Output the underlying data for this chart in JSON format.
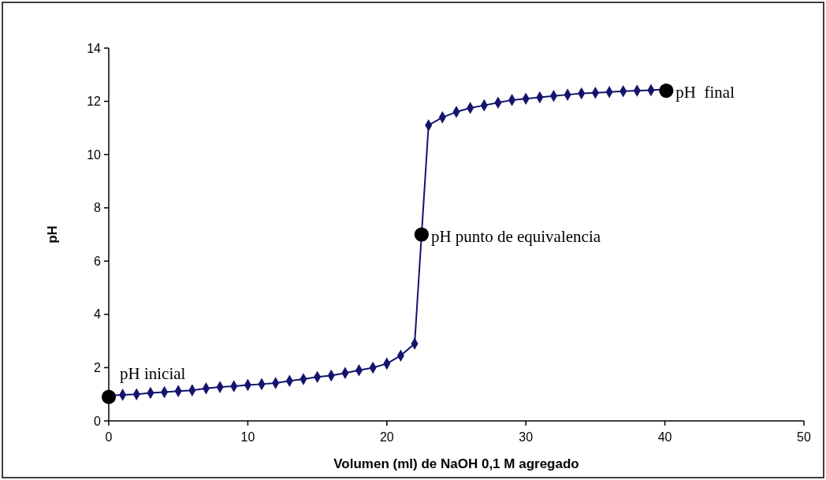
{
  "chart_data": {
    "type": "line",
    "xlabel": "Volumen (ml) de NaOH 0,1 M agregado",
    "ylabel": "pH",
    "xlim": [
      0,
      50
    ],
    "xticks": [
      0,
      10,
      20,
      30,
      40,
      50
    ],
    "ylim": [
      0,
      14
    ],
    "yticks": [
      0,
      2,
      4,
      6,
      8,
      10,
      12,
      14
    ],
    "marker": "diamond",
    "line_style": "solid",
    "series": [
      {
        "color": "#14146e",
        "x": [
          0,
          1,
          2,
          3,
          4,
          5,
          6,
          7,
          8,
          9,
          10,
          11,
          12,
          13,
          14,
          15,
          16,
          17,
          18,
          19,
          20,
          21,
          22,
          23,
          24,
          25,
          26,
          27,
          28,
          29,
          30,
          31,
          32,
          33,
          34,
          35,
          36,
          37,
          38,
          39,
          40
        ],
        "values": [
          0.95,
          0.98,
          1.0,
          1.05,
          1.08,
          1.12,
          1.15,
          1.22,
          1.27,
          1.3,
          1.35,
          1.38,
          1.42,
          1.5,
          1.57,
          1.65,
          1.7,
          1.8,
          1.9,
          2.0,
          2.15,
          2.45,
          2.9,
          11.1,
          11.4,
          11.6,
          11.75,
          11.85,
          11.95,
          12.05,
          12.1,
          12.15,
          12.2,
          12.25,
          12.3,
          12.32,
          12.35,
          12.38,
          12.4,
          12.42,
          12.45
        ]
      },
      {
        "type": "scatter",
        "marker": "circle",
        "color": "#000000",
        "x": [
          0,
          22.5,
          40.1
        ],
        "values": [
          0.9,
          7.0,
          12.4
        ]
      }
    ],
    "annotations": [
      {
        "text": "pH inicial",
        "x": 0,
        "y": 0.9
      },
      {
        "text": "pH punto de equivalencia",
        "x": 22.5,
        "y": 7.0
      },
      {
        "text": "pH  final",
        "x": 40.1,
        "y": 12.4
      }
    ]
  }
}
